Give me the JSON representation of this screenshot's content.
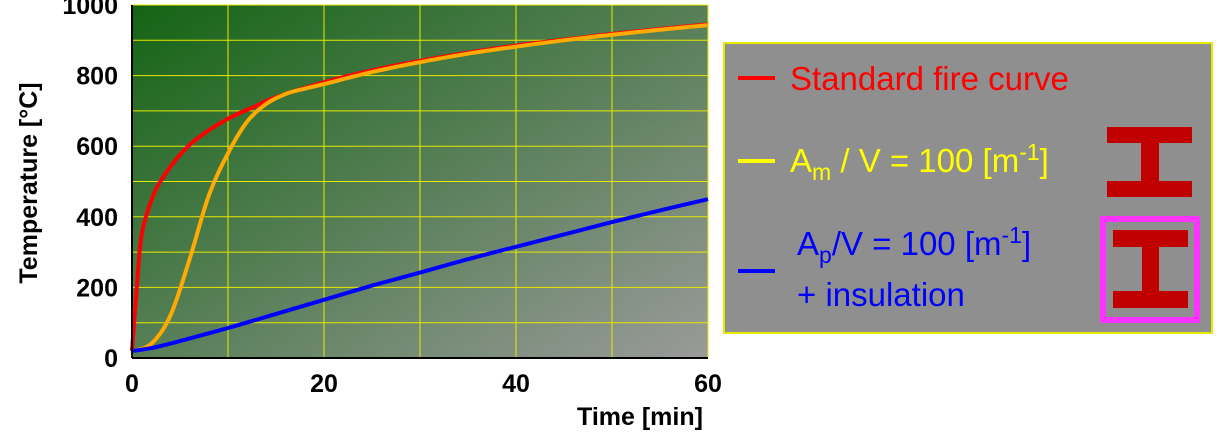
{
  "chart_data": {
    "type": "line",
    "xlabel": "Time [min]",
    "ylabel": "Temperature [°C]",
    "xlim": [
      0,
      60
    ],
    "ylim": [
      0,
      1000
    ],
    "xticks": [
      "0",
      "20",
      "40",
      "60"
    ],
    "yticks": [
      "0",
      "200",
      "400",
      "600",
      "800",
      "1000"
    ],
    "grid": true,
    "legend_position": "right",
    "series": [
      {
        "name": "Standard fire curve",
        "color": "#ff0000",
        "x": [
          0,
          0.5,
          1,
          2,
          3,
          5,
          7,
          10,
          13,
          15,
          20,
          25,
          30,
          35,
          40,
          45,
          50,
          55,
          60
        ],
        "y": [
          20,
          200,
          349,
          445,
          502,
          576,
          626,
          678,
          715,
          739,
          781,
          815,
          842,
          865,
          885,
          902,
          918,
          932,
          945
        ]
      },
      {
        "name": "Am / V = 100 [m-1]",
        "color": "#ffaa00",
        "x": [
          0,
          2,
          4,
          6,
          8,
          10,
          12,
          14,
          16,
          18,
          20,
          25,
          30,
          35,
          40,
          45,
          50,
          55,
          60
        ],
        "y": [
          20,
          40,
          120,
          280,
          460,
          580,
          670,
          720,
          748,
          763,
          776,
          810,
          838,
          862,
          882,
          900,
          916,
          930,
          943
        ]
      },
      {
        "name": "Ap/V = 100 [m-1] + insulation",
        "color": "#0000ff",
        "x": [
          0,
          2,
          5,
          10,
          15,
          20,
          25,
          30,
          35,
          40,
          45,
          50,
          55,
          60
        ],
        "y": [
          20,
          28,
          48,
          85,
          125,
          165,
          205,
          242,
          280,
          315,
          350,
          385,
          418,
          450
        ]
      }
    ]
  },
  "legend": {
    "item1_label": "Standard fire curve",
    "item2_prefix": "A",
    "item2_sub": "m",
    "item2_suffix": " / V = 100 [m",
    "item2_sup": "-1",
    "item2_end": "]",
    "item3_prefix": "A",
    "item3_sub": "p",
    "item3_suffix": "/V = 100 [m",
    "item3_sup": "-1",
    "item3_end": "]",
    "item3_line2": "+ insulation",
    "colors": {
      "panel": "#8f8f8f",
      "panel_border": "#e8e800",
      "swatch_red": "#ff0000",
      "swatch_yellow": "#ffff00",
      "swatch_blue": "#0000ff",
      "text_red": "#ff0000",
      "text_yellow": "#ffff00",
      "text_blue": "#0000ff",
      "beam": "#c00000",
      "insulation": "#ff33ff"
    },
    "icons": [
      "i-beam-icon",
      "insulated-i-beam-icon"
    ]
  },
  "plot_colors": {
    "gradient_start": "#146414",
    "gradient_end": "#9a9a9a",
    "grid": "#e8e800"
  }
}
